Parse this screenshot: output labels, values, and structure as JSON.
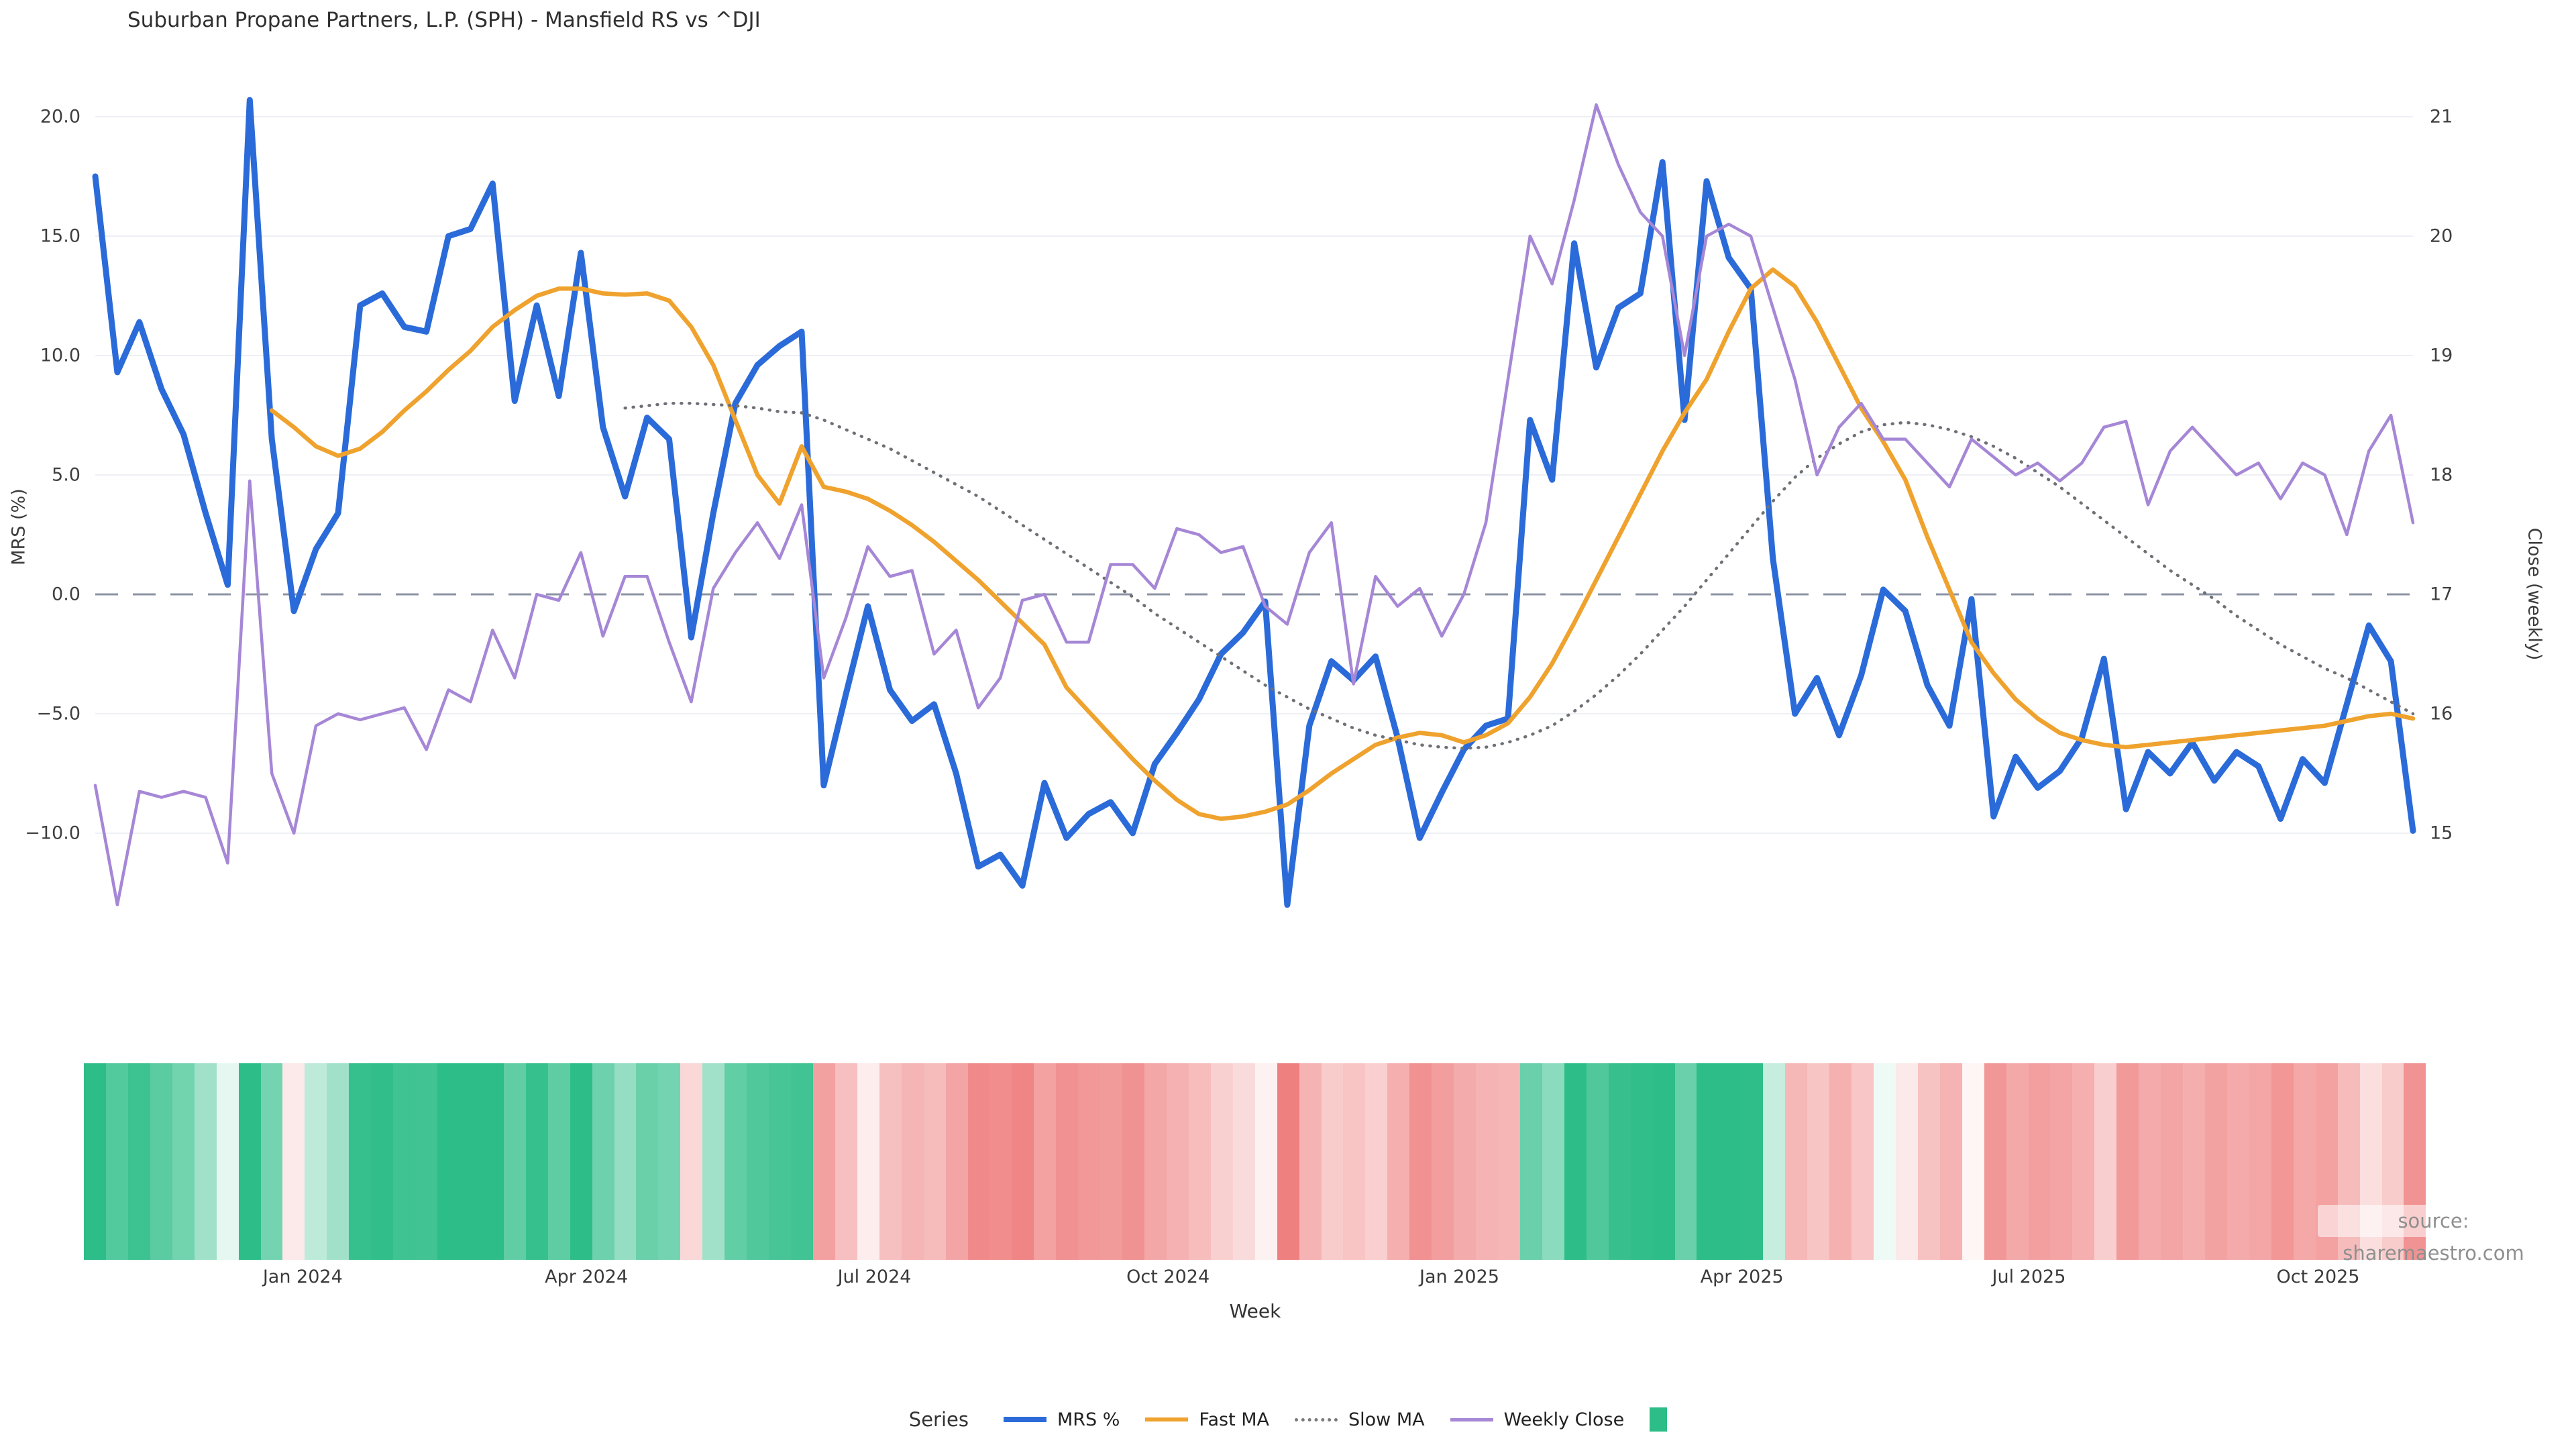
{
  "title": "Suburban Propane Partners, L.P. (SPH) - Mansfield RS vs ^DJI",
  "source_note": "source: sharemaestro.com",
  "axes": {
    "left_label": "MRS (%)",
    "right_label": "Close (weekly)",
    "x_label": "Week",
    "left_ticks": [
      {
        "value": 20,
        "label": "20.0"
      },
      {
        "value": 15,
        "label": "15.0"
      },
      {
        "value": 10,
        "label": "10.0"
      },
      {
        "value": 5,
        "label": "5.0"
      },
      {
        "value": 0,
        "label": "0.0"
      },
      {
        "value": -5,
        "label": "−5.0"
      },
      {
        "value": -10,
        "label": "−10.0"
      }
    ],
    "right_ticks": [
      {
        "value": 21,
        "label": "21"
      },
      {
        "value": 20,
        "label": "20"
      },
      {
        "value": 19,
        "label": "19"
      },
      {
        "value": 18,
        "label": "18"
      },
      {
        "value": 17,
        "label": "17"
      },
      {
        "value": 16,
        "label": "16"
      },
      {
        "value": 15,
        "label": "15"
      }
    ],
    "x_ticks": [
      {
        "week": 9.4,
        "label": "Jan 2024"
      },
      {
        "week": 22.25,
        "label": "Apr 2024"
      },
      {
        "week": 35.3,
        "label": "Jul 2024"
      },
      {
        "week": 48.6,
        "label": "Oct 2024"
      },
      {
        "week": 61.8,
        "label": "Jan 2025"
      },
      {
        "week": 74.6,
        "label": "Apr 2025"
      },
      {
        "week": 87.6,
        "label": "Jul 2025"
      },
      {
        "week": 100.7,
        "label": "Oct 2025"
      }
    ]
  },
  "legend": {
    "series_word": "Series",
    "items": [
      {
        "label": "MRS %",
        "swatch": "line",
        "color": "#2b6bd9",
        "thickness": 8
      },
      {
        "label": "Fast MA",
        "swatch": "line",
        "color": "#efa22d",
        "thickness": 6
      },
      {
        "label": "Slow MA",
        "swatch": "dotted",
        "color": "#7a7a7a",
        "thickness": 5
      },
      {
        "label": "Weekly Close",
        "swatch": "line",
        "color": "#a687d6",
        "thickness": 5
      },
      {
        "label": "",
        "swatch": "square",
        "color": "#2dbd88",
        "thickness": 0
      }
    ]
  },
  "chart_data": {
    "type": "line",
    "x_unit": "week index (weekly data, ~Nov 2023 to ~Nov 2025, 106 weeks)",
    "grid": "horizontal only",
    "zero_reference_line": {
      "value": 0,
      "style": "dashed",
      "color": "#8b93a3"
    },
    "left_axis": {
      "label": "MRS (%)",
      "range": [
        -14.5,
        22
      ]
    },
    "right_axis": {
      "label": "Close (weekly)",
      "range": [
        14.3,
        21.4
      ]
    },
    "series": [
      {
        "name": "MRS %",
        "axis": "left",
        "color": "#2b6bd9",
        "width": 9,
        "values": [
          17.5,
          9.3,
          11.4,
          8.6,
          6.7,
          3.4,
          0.4,
          20.7,
          6.5,
          -0.7,
          1.9,
          3.4,
          12.1,
          12.6,
          11.2,
          11.0,
          15.0,
          15.3,
          17.2,
          8.1,
          12.1,
          8.3,
          14.3,
          7.0,
          4.1,
          7.4,
          6.5,
          -1.8,
          3.4,
          8.0,
          9.6,
          10.4,
          11.0,
          -8.0,
          -4.2,
          -0.5,
          -4.0,
          -5.3,
          -4.6,
          -7.5,
          -11.4,
          -10.9,
          -12.2,
          -7.9,
          -10.2,
          -9.2,
          -8.7,
          -10.0,
          -7.1,
          -5.8,
          -4.4,
          -2.5,
          -1.6,
          -0.3,
          -13.0,
          -5.5,
          -2.8,
          -3.6,
          -2.6,
          -6.0,
          -10.2,
          -8.3,
          -6.5,
          -5.5,
          -5.2,
          7.3,
          4.8,
          14.7,
          9.5,
          12.0,
          12.6,
          18.1,
          7.3,
          17.3,
          14.1,
          12.8,
          1.5,
          -5.0,
          -3.5,
          -5.9,
          -3.4,
          0.2,
          -0.7,
          -3.8,
          -5.5,
          -0.2,
          -9.3,
          -6.8,
          -8.1,
          -7.4,
          -6.0,
          -2.7,
          -9.0,
          -6.6,
          -7.5,
          -6.2,
          -7.8,
          -6.6,
          -7.2,
          -9.4,
          -6.9,
          -7.9,
          -4.6,
          -1.3,
          -2.8,
          -9.9
        ]
      },
      {
        "name": "Fast MA",
        "axis": "left",
        "color": "#efa22d",
        "width": 6.5,
        "values": [
          null,
          null,
          null,
          null,
          null,
          null,
          null,
          null,
          7.7,
          7.0,
          6.2,
          5.8,
          6.1,
          6.8,
          7.7,
          8.5,
          9.4,
          10.2,
          11.2,
          11.9,
          12.5,
          12.8,
          12.8,
          12.6,
          12.55,
          12.6,
          12.3,
          11.2,
          9.6,
          7.3,
          5.0,
          3.8,
          6.2,
          4.5,
          4.3,
          4.0,
          3.5,
          2.9,
          2.2,
          1.4,
          0.6,
          -0.3,
          -1.2,
          -2.1,
          -3.9,
          -4.9,
          -5.9,
          -6.9,
          -7.8,
          -8.6,
          -9.2,
          -9.4,
          -9.3,
          -9.1,
          -8.8,
          -8.2,
          -7.5,
          -6.9,
          -6.3,
          -6.0,
          -5.8,
          -5.9,
          -6.2,
          -5.9,
          -5.4,
          -4.3,
          -2.9,
          -1.2,
          0.6,
          2.4,
          4.2,
          6.0,
          7.6,
          9.0,
          11.0,
          12.8,
          13.6,
          12.9,
          11.4,
          9.6,
          7.8,
          6.4,
          4.8,
          2.4,
          0.2,
          -2.0,
          -3.3,
          -4.4,
          -5.2,
          -5.8,
          -6.1,
          -6.3,
          -6.4,
          -6.3,
          -6.2,
          -6.1,
          -6.0,
          -5.9,
          -5.8,
          -5.7,
          -5.6,
          -5.5,
          -5.3,
          -5.1,
          -5.0,
          -5.2
        ]
      },
      {
        "name": "Slow MA",
        "axis": "left",
        "color": "#6f7076",
        "width": 4.5,
        "dotted": true,
        "values": [
          null,
          null,
          null,
          null,
          null,
          null,
          null,
          null,
          null,
          null,
          null,
          null,
          null,
          null,
          null,
          null,
          null,
          null,
          null,
          null,
          null,
          null,
          null,
          null,
          7.8,
          7.9,
          8.0,
          8.0,
          7.95,
          7.9,
          7.8,
          7.65,
          7.6,
          7.3,
          6.9,
          6.5,
          6.1,
          5.6,
          5.1,
          4.6,
          4.1,
          3.5,
          2.9,
          2.3,
          1.7,
          1.1,
          0.5,
          -0.1,
          -0.8,
          -1.4,
          -2.0,
          -2.6,
          -3.2,
          -3.8,
          -4.3,
          -4.8,
          -5.2,
          -5.6,
          -5.9,
          -6.1,
          -6.3,
          -6.4,
          -6.45,
          -6.4,
          -6.2,
          -5.9,
          -5.5,
          -4.9,
          -4.2,
          -3.4,
          -2.5,
          -1.5,
          -0.5,
          0.6,
          1.7,
          2.8,
          3.9,
          4.9,
          5.7,
          6.3,
          6.8,
          7.1,
          7.2,
          7.1,
          6.9,
          6.6,
          6.2,
          5.7,
          5.1,
          4.5,
          3.8,
          3.1,
          2.4,
          1.7,
          1.0,
          0.4,
          -0.2,
          -0.9,
          -1.5,
          -2.1,
          -2.6,
          -3.1,
          -3.5,
          -4.0,
          -4.5,
          -5.0
        ]
      },
      {
        "name": "Weekly Close",
        "axis": "right",
        "color": "#a687d6",
        "width": 4.5,
        "values": [
          15.4,
          14.4,
          15.35,
          15.3,
          15.35,
          15.3,
          14.75,
          17.95,
          15.5,
          15.0,
          15.9,
          16.0,
          15.95,
          16.0,
          16.05,
          15.7,
          16.2,
          16.1,
          16.7,
          16.3,
          17.0,
          16.95,
          17.35,
          16.65,
          17.15,
          17.15,
          16.6,
          16.1,
          17.05,
          17.35,
          17.6,
          17.3,
          17.75,
          16.3,
          16.8,
          17.4,
          17.15,
          17.2,
          16.5,
          16.7,
          16.05,
          16.3,
          16.95,
          17.0,
          16.6,
          16.6,
          17.25,
          17.25,
          17.05,
          17.55,
          17.5,
          17.35,
          17.4,
          16.9,
          16.75,
          17.35,
          17.6,
          16.25,
          17.15,
          16.9,
          17.05,
          16.65,
          17.0,
          17.6,
          18.8,
          20.0,
          19.6,
          20.3,
          21.1,
          20.6,
          20.2,
          20.0,
          19.0,
          20.0,
          20.1,
          20.0,
          19.4,
          18.8,
          18.0,
          18.4,
          18.6,
          18.3,
          18.3,
          18.1,
          17.9,
          18.3,
          18.15,
          18.0,
          18.1,
          17.95,
          18.1,
          18.4,
          18.45,
          17.75,
          18.2,
          18.4,
          18.2,
          18.0,
          18.1,
          17.8,
          18.1,
          18.0,
          17.5,
          18.2,
          18.5,
          17.6
        ]
      }
    ],
    "heatmap": {
      "description": "weekly color strip below chart, one cell per week, colored by MRS % value",
      "source_series": "MRS %",
      "positive_color": "#2dbd88",
      "negative_color": "#ef8080",
      "saturation_at": 13
    }
  }
}
